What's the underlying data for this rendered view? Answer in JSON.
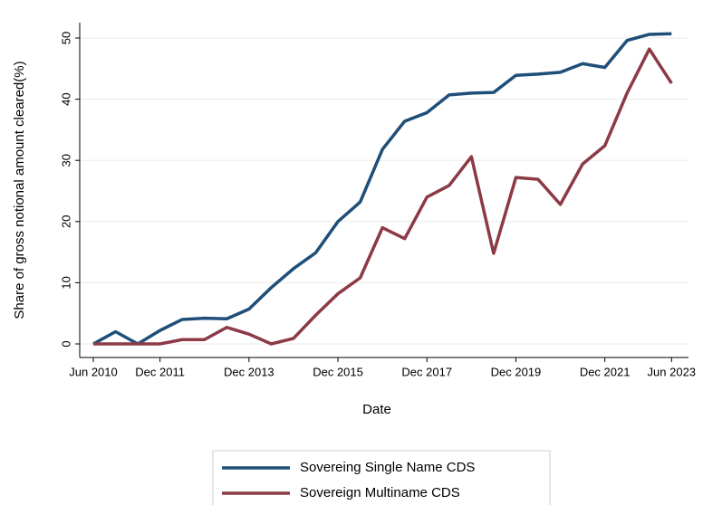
{
  "chart_data": {
    "type": "line",
    "xlabel": "Date",
    "ylabel": "Share of gross notional amount cleared(%)",
    "x": [
      "Jun 2010",
      "Dec 2010",
      "Jun 2011",
      "Dec 2011",
      "Jun 2012",
      "Dec 2012",
      "Jun 2013",
      "Dec 2013",
      "Jun 2014",
      "Dec 2014",
      "Jun 2015",
      "Dec 2015",
      "Jun 2016",
      "Dec 2016",
      "Jun 2017",
      "Dec 2017",
      "Jun 2018",
      "Dec 2018",
      "Jun 2019",
      "Dec 2019",
      "Jun 2020",
      "Dec 2020",
      "Jun 2021",
      "Dec 2021",
      "Jun 2022",
      "Dec 2022",
      "Jun 2023"
    ],
    "xticks": [
      "Jun 2010",
      "Dec 2011",
      "Dec 2013",
      "Dec 2015",
      "Dec 2017",
      "Dec 2019",
      "Dec 2021",
      "Jun 2023"
    ],
    "series": [
      {
        "name": "Sovereing Single Name CDS",
        "color": "#1f4e79",
        "values": [
          0,
          2,
          0,
          2.2,
          4.0,
          4.2,
          4.1,
          5.7,
          9.2,
          12.3,
          14.9,
          20,
          23.2,
          31.8,
          36.4,
          37.8,
          40.7,
          41,
          41.1,
          43.9,
          44.1,
          44.4,
          45.8,
          45.2,
          49.6,
          50.6,
          50.7
        ]
      },
      {
        "name": "Sovereign Multiname CDS",
        "color": "#8b3a46",
        "values": [
          0,
          0,
          0,
          0,
          0.7,
          0.7,
          2.7,
          1.6,
          0,
          0.9,
          4.7,
          8.2,
          10.8,
          19,
          17.2,
          24,
          25.9,
          30.6,
          14.8,
          27.2,
          26.9,
          22.8,
          29.4,
          32.4,
          41,
          48.2,
          42.6
        ]
      }
    ],
    "ylim": [
      0,
      52
    ],
    "yticks": [
      0,
      10,
      20,
      30,
      40,
      50
    ],
    "grid": true,
    "legend": "bottom"
  }
}
